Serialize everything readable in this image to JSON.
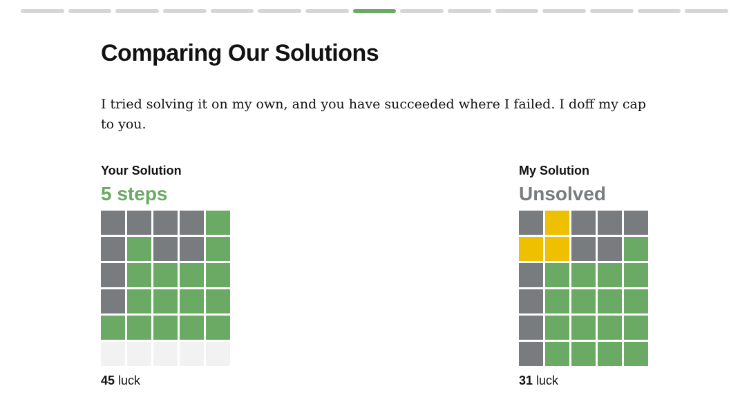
{
  "header": {
    "title": "Comparing Our Solutions",
    "text": "I tried solving it on my own, and you have succeeded where I failed. I doff my cap to you."
  },
  "palette": {
    "x": "#787c7e",
    "g": "#6aaa64",
    "y": "#efc000",
    "e": "#f2f2f2"
  },
  "solutions": [
    {
      "label": "Your Solution",
      "result": "5 steps",
      "result_color": "#6aaa64",
      "rows": [
        "xxxxg",
        "xgxxg",
        "xgggg",
        "xgggg",
        "ggggg",
        "eeeee"
      ],
      "luck": 45,
      "luck_label": "luck"
    },
    {
      "label": "My Solution",
      "result": "Unsolved",
      "result_color": "#787c7e",
      "rows": [
        "xyxxx",
        "yyxxg",
        "xgggg",
        "xgggg",
        "xgggg",
        "xgggg"
      ],
      "luck": 31,
      "luck_label": "luck"
    }
  ]
}
